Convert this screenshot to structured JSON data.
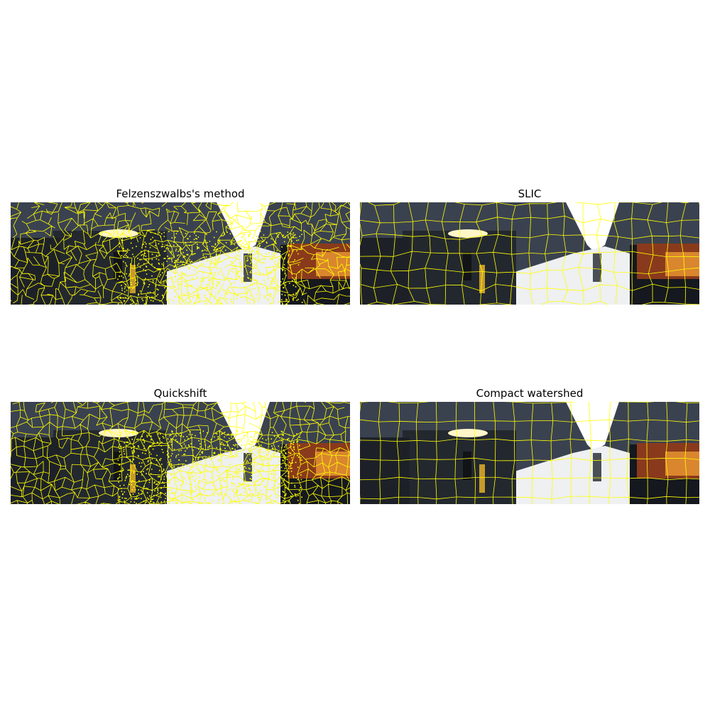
{
  "panels": [
    {
      "title": "Felzenszwalbs's method",
      "method": "felzenszwalb"
    },
    {
      "title": "SLIC",
      "method": "slic"
    },
    {
      "title": "Quickshift",
      "method": "quickshift"
    },
    {
      "title": "Compact watershed",
      "method": "watershed"
    }
  ],
  "colors": {
    "boundary": "#ffff00",
    "sky": "#ffffff",
    "road": "#eef0f2",
    "buildings": "#3a4250",
    "shadow": "#15181e",
    "vehicle": "#d9862e",
    "vehicle_dark": "#8a3a1c"
  }
}
